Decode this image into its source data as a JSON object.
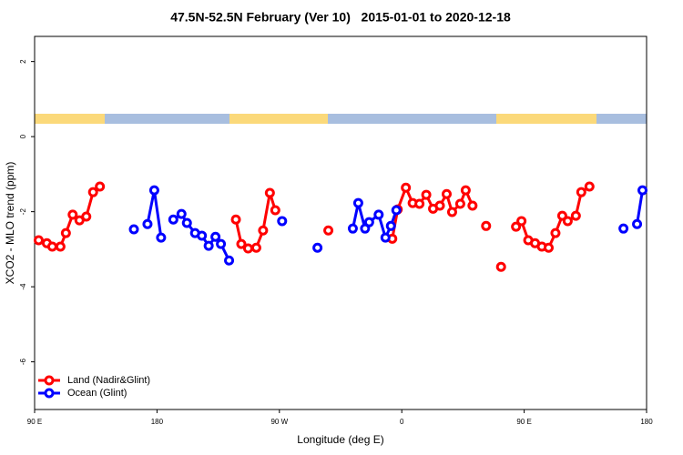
{
  "chart_data": {
    "type": "line",
    "title": "47.5N-52.5N February (Ver 10)   2015-01-01 to 2020-12-18",
    "x_label": "Longitude (deg E)",
    "y_label": "XCO2 - MLO trend (ppm)",
    "xlim": [
      90,
      540
    ],
    "xticks": [
      {
        "value": 90,
        "label": "90 E"
      },
      {
        "value": 180,
        "label": "180"
      },
      {
        "value": 270,
        "label": "90 W"
      },
      {
        "value": 360,
        "label": "0"
      },
      {
        "value": 450,
        "label": "90 E"
      },
      {
        "value": 540,
        "label": "180"
      }
    ],
    "ylim": [
      -7.27,
      2.67
    ],
    "yticks": [
      -6,
      -4,
      -2,
      0,
      2
    ],
    "legend": "bottomleft",
    "series": [
      {
        "name": "Land (Nadir&Glint)",
        "color": "#ff0000",
        "x": [
          93,
          99,
          103,
          109,
          113,
          118,
          123,
          128,
          133,
          138,
          null,
          238,
          242,
          247,
          253,
          258,
          263,
          267,
          null,
          306,
          null,
          353,
          357,
          363,
          368,
          373,
          378,
          383,
          388,
          393,
          397,
          403,
          407,
          412,
          null,
          422,
          null,
          433,
          null,
          444,
          448,
          453,
          458,
          463,
          468,
          473,
          478,
          482,
          488,
          492,
          498
        ],
        "values": [
          -2.76,
          -2.84,
          -2.93,
          -2.93,
          -2.57,
          -2.08,
          -2.23,
          -2.13,
          -1.48,
          -1.33,
          null,
          -2.21,
          -2.86,
          -2.98,
          -2.96,
          -2.5,
          -1.5,
          -1.96,
          null,
          -2.5,
          null,
          -2.72,
          -1.94,
          -1.36,
          -1.77,
          -1.79,
          -1.55,
          -1.92,
          -1.84,
          -1.53,
          -2.01,
          -1.79,
          -1.43,
          -1.84,
          null,
          -2.38,
          null,
          -3.47,
          null,
          -2.4,
          -2.25,
          -2.76,
          -2.84,
          -2.93,
          -2.96,
          -2.57,
          -2.11,
          -2.25,
          -2.11,
          -1.48,
          -1.33
        ]
      },
      {
        "name": "Ocean (Glint)",
        "color": "#0000ff",
        "x": [
          163,
          null,
          173,
          178,
          183,
          null,
          192,
          198,
          202,
          208,
          213,
          218,
          223,
          227,
          233,
          null,
          272,
          null,
          298,
          null,
          324,
          328,
          333,
          336,
          343,
          348,
          352,
          356,
          null,
          523,
          null,
          533,
          537
        ],
        "values": [
          -2.47,
          null,
          -2.33,
          -1.43,
          -2.69,
          null,
          -2.21,
          -2.06,
          -2.3,
          -2.57,
          -2.64,
          -2.91,
          -2.67,
          -2.86,
          -3.3,
          null,
          -2.25,
          null,
          -2.96,
          null,
          -2.45,
          -1.77,
          -2.45,
          -2.28,
          -2.08,
          -2.69,
          -2.38,
          -1.96,
          null,
          -2.45,
          null,
          -2.33,
          -1.43
        ]
      }
    ]
  }
}
